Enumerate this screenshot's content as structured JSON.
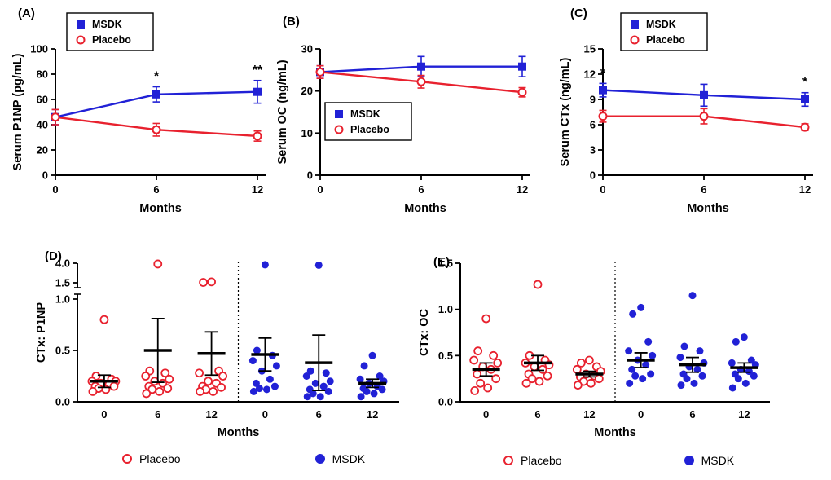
{
  "chart_data": {
    "panels": [
      {
        "id": "A",
        "label": "(A)",
        "type": "line",
        "ylabel": "Serum P1NP (pg/mL)",
        "xlabel": "Months",
        "x": [
          0,
          6,
          12
        ],
        "xtick_labels": [
          "0",
          "6",
          "12"
        ],
        "ylim": [
          0,
          100
        ],
        "yticks": [
          [
            0,
            "0"
          ],
          [
            20,
            "20"
          ],
          [
            40,
            "40"
          ],
          [
            60,
            "60"
          ],
          [
            80,
            "80"
          ],
          [
            100,
            "100"
          ]
        ],
        "series": [
          {
            "name": "MSDK",
            "color": "#2121d6",
            "marker": "square-filled",
            "values": [
              46,
              64,
              66
            ],
            "err": [
              6,
              6,
              9
            ]
          },
          {
            "name": "Placebo",
            "color": "#e8212e",
            "marker": "circle-open",
            "values": [
              46,
              36,
              31
            ],
            "err": [
              6,
              5,
              4
            ]
          }
        ],
        "significance": [
          {
            "x": 6,
            "label": "*"
          },
          {
            "x": 12,
            "label": "**"
          }
        ]
      },
      {
        "id": "B",
        "label": "(B)",
        "type": "line",
        "ylabel": "Serum OC (ng/mL)",
        "xlabel": "Months",
        "x": [
          0,
          6,
          12
        ],
        "xtick_labels": [
          "0",
          "6",
          "12"
        ],
        "ylim": [
          0,
          30
        ],
        "yticks": [
          [
            0,
            "0"
          ],
          [
            10,
            "10"
          ],
          [
            20,
            "20"
          ],
          [
            30,
            "30"
          ]
        ],
        "series": [
          {
            "name": "MSDK",
            "color": "#2121d6",
            "marker": "square-filled",
            "values": [
              24.5,
              25.8,
              25.8
            ],
            "err": [
              1.5,
              2.4,
              2.4
            ]
          },
          {
            "name": "Placebo",
            "color": "#e8212e",
            "marker": "circle-open",
            "values": [
              24.5,
              22.2,
              19.7
            ],
            "err": [
              1.5,
              1.5,
              1.1
            ]
          }
        ],
        "significance": []
      },
      {
        "id": "C",
        "label": "(C)",
        "type": "line",
        "ylabel": "Serum CTx (ng/mL)",
        "xlabel": "Months",
        "x": [
          0,
          6,
          12
        ],
        "xtick_labels": [
          "0",
          "6",
          "12"
        ],
        "ylim": [
          0,
          15
        ],
        "yticks": [
          [
            0,
            "0"
          ],
          [
            3,
            "3"
          ],
          [
            6,
            "6"
          ],
          [
            9,
            "9"
          ],
          [
            12,
            "12"
          ],
          [
            15,
            "15"
          ]
        ],
        "series": [
          {
            "name": "MSDK",
            "color": "#2121d6",
            "marker": "square-filled",
            "values": [
              10.1,
              9.5,
              9.0
            ],
            "err": [
              0.8,
              1.3,
              0.8
            ]
          },
          {
            "name": "Placebo",
            "color": "#e8212e",
            "marker": "circle-open",
            "values": [
              7.0,
              7.0,
              5.7
            ],
            "err": [
              0.7,
              0.9,
              0.4
            ]
          }
        ],
        "significance": [
          {
            "x": 0,
            "label": "*"
          },
          {
            "x": 12,
            "label": "*"
          }
        ]
      },
      {
        "id": "D",
        "label": "(D)",
        "type": "scatter",
        "ylabel": "CTx: P1NP",
        "xlabel": "Months",
        "ybreak": {
          "lower": [
            0,
            1.0
          ],
          "upper": [
            1.5,
            4.0
          ]
        },
        "yticks_lower": [
          [
            0,
            "0.0"
          ],
          [
            0.5,
            "0.5"
          ],
          [
            1.0,
            "1.0"
          ]
        ],
        "yticks_upper": [
          [
            1.5,
            "1.5"
          ],
          [
            4.0,
            "4.0"
          ]
        ],
        "series_styles": [
          {
            "name": "Placebo",
            "color": "#e8212e",
            "marker": "circle-open"
          },
          {
            "name": "MSDK",
            "color": "#2121d6",
            "marker": "circle-filled"
          }
        ],
        "groups": [
          {
            "tick": "0",
            "series": "Placebo",
            "mean": 0.2,
            "sem": 0.06,
            "points": [
              0.8,
              0.25,
              0.22,
              0.2,
              0.2,
              0.18,
              0.17,
              0.15,
              0.15,
              0.13,
              0.12,
              0.1
            ]
          },
          {
            "tick": "6",
            "series": "Placebo",
            "mean": 0.5,
            "sem": 0.31,
            "points": [
              3.9,
              0.3,
              0.28,
              0.25,
              0.22,
              0.2,
              0.18,
              0.15,
              0.13,
              0.12,
              0.1,
              0.08
            ]
          },
          {
            "tick": "12",
            "series": "Placebo",
            "mean": 0.47,
            "sem": 0.21,
            "points": [
              1.62,
              1.55,
              0.3,
              0.28,
              0.25,
              0.2,
              0.18,
              0.15,
              0.14,
              0.12,
              0.1,
              0.1
            ]
          },
          {
            "tick": "0",
            "series": "MSDK",
            "mean": 0.46,
            "sem": 0.16,
            "points": [
              3.8,
              0.5,
              0.45,
              0.4,
              0.35,
              0.3,
              0.22,
              0.18,
              0.15,
              0.13,
              0.12,
              0.1
            ]
          },
          {
            "tick": "6",
            "series": "MSDK",
            "mean": 0.38,
            "sem": 0.27,
            "points": [
              3.75,
              0.3,
              0.28,
              0.25,
              0.2,
              0.18,
              0.15,
              0.12,
              0.1,
              0.08,
              0.05,
              0.05
            ]
          },
          {
            "tick": "12",
            "series": "MSDK",
            "mean": 0.18,
            "sem": 0.04,
            "points": [
              0.45,
              0.35,
              0.25,
              0.22,
              0.2,
              0.18,
              0.15,
              0.13,
              0.12,
              0.1,
              0.08,
              0.05
            ]
          }
        ],
        "legend": [
          {
            "name": "Placebo",
            "marker": "circle-open",
            "color": "#e8212e"
          },
          {
            "name": "MSDK",
            "marker": "circle-filled",
            "color": "#2121d6"
          }
        ]
      },
      {
        "id": "E",
        "label": "(E)",
        "type": "scatter",
        "ylabel": "CTx: OC",
        "xlabel": "Months",
        "ylim": [
          0,
          1.5
        ],
        "yticks": [
          [
            0,
            "0.0"
          ],
          [
            0.5,
            "0.5"
          ],
          [
            1.0,
            "1.0"
          ],
          [
            1.5,
            "1.5"
          ]
        ],
        "series_styles": [
          {
            "name": "Placebo",
            "color": "#e8212e",
            "marker": "circle-open"
          },
          {
            "name": "MSDK",
            "color": "#2121d6",
            "marker": "circle-filled"
          }
        ],
        "groups": [
          {
            "tick": "0",
            "series": "Placebo",
            "mean": 0.35,
            "sem": 0.07,
            "points": [
              0.9,
              0.55,
              0.5,
              0.45,
              0.42,
              0.38,
              0.35,
              0.3,
              0.25,
              0.2,
              0.15,
              0.12
            ]
          },
          {
            "tick": "6",
            "series": "Placebo",
            "mean": 0.42,
            "sem": 0.08,
            "points": [
              1.27,
              0.5,
              0.45,
              0.42,
              0.4,
              0.38,
              0.35,
              0.3,
              0.28,
              0.25,
              0.22,
              0.2
            ]
          },
          {
            "tick": "12",
            "series": "Placebo",
            "mean": 0.3,
            "sem": 0.03,
            "points": [
              0.45,
              0.42,
              0.38,
              0.35,
              0.33,
              0.3,
              0.28,
              0.27,
              0.25,
              0.22,
              0.2,
              0.18
            ]
          },
          {
            "tick": "0",
            "series": "MSDK",
            "mean": 0.45,
            "sem": 0.08,
            "points": [
              1.02,
              0.95,
              0.65,
              0.55,
              0.5,
              0.45,
              0.4,
              0.35,
              0.3,
              0.28,
              0.25,
              0.2
            ]
          },
          {
            "tick": "6",
            "series": "MSDK",
            "mean": 0.4,
            "sem": 0.08,
            "points": [
              1.15,
              0.6,
              0.55,
              0.48,
              0.42,
              0.38,
              0.35,
              0.3,
              0.28,
              0.25,
              0.2,
              0.18
            ]
          },
          {
            "tick": "12",
            "series": "MSDK",
            "mean": 0.37,
            "sem": 0.05,
            "points": [
              0.7,
              0.65,
              0.45,
              0.42,
              0.4,
              0.35,
              0.33,
              0.3,
              0.28,
              0.25,
              0.2,
              0.15
            ]
          }
        ],
        "legend": [
          {
            "name": "Placebo",
            "marker": "circle-open",
            "color": "#e8212e"
          },
          {
            "name": "MSDK",
            "marker": "circle-filled",
            "color": "#2121d6"
          }
        ]
      }
    ]
  }
}
